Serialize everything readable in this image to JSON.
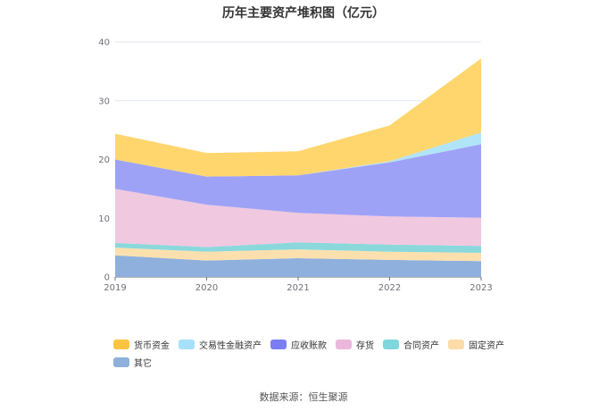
{
  "chart_data": {
    "type": "area",
    "stacked": true,
    "title": "历年主要资产堆积图（亿元）",
    "x": [
      "2019",
      "2020",
      "2021",
      "2022",
      "2023"
    ],
    "yticks": [
      "0",
      "10",
      "20",
      "30",
      "40"
    ],
    "ylim": [
      0,
      40
    ],
    "grid": true,
    "legend_position": "bottom",
    "series": [
      {
        "name": "其它",
        "color": "#8fb0dc",
        "values": [
          3.7,
          2.8,
          3.2,
          2.9,
          2.7
        ]
      },
      {
        "name": "固定资产",
        "color": "#fbe0ae",
        "values": [
          1.3,
          1.5,
          1.5,
          1.4,
          1.4
        ]
      },
      {
        "name": "合同资产",
        "color": "#8ad8dc",
        "values": [
          0.8,
          0.8,
          1.2,
          1.2,
          1.2
        ]
      },
      {
        "name": "存货",
        "color": "#f0c8e0",
        "values": [
          9.2,
          7.2,
          5.0,
          4.8,
          4.8
        ]
      },
      {
        "name": "应收账款",
        "color": "#9ea2f6",
        "values": [
          5.0,
          4.8,
          6.4,
          9.2,
          12.5
        ]
      },
      {
        "name": "交易性金融资产",
        "color": "#b0e4f8",
        "values": [
          0.0,
          0.0,
          0.0,
          0.2,
          2.0
        ]
      },
      {
        "name": "货币资金",
        "color": "#ffd66e",
        "values": [
          4.4,
          4.0,
          4.1,
          6.1,
          12.6
        ]
      }
    ],
    "legend_order": [
      "货币资金",
      "交易性金融资产",
      "应收账款",
      "存货",
      "合同资产",
      "固定资产",
      "其它"
    ],
    "legend_colors": [
      "#fcc440",
      "#a6e0fa",
      "#7b7ef2",
      "#ebb8dc",
      "#7fd6dc",
      "#fcdca8",
      "#8fb0dc"
    ]
  },
  "source_text": "数据来源：恒生聚源"
}
